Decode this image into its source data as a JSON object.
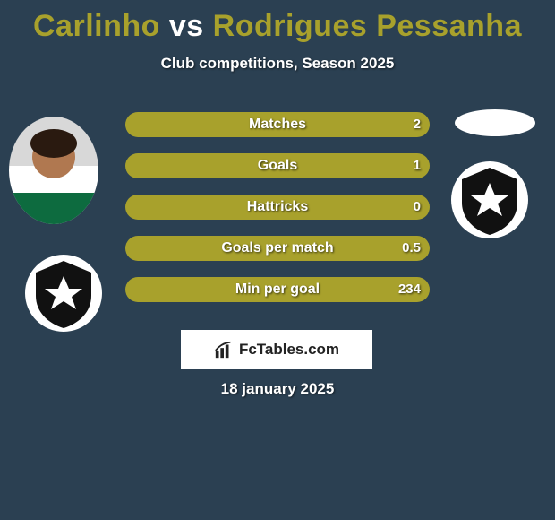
{
  "title": {
    "p1": "Carlinho",
    "vs": "vs",
    "p2": "Rodrigues Pessanha"
  },
  "subtitle": "Club competitions, Season 2025",
  "colors": {
    "p1_bar": "#a8a12c",
    "p2_bar": "#2b4052",
    "p2_bar_alt": "#2b4052"
  },
  "stats": [
    {
      "label": "Matches",
      "v1": "2",
      "v2": "",
      "share1": 1.0
    },
    {
      "label": "Goals",
      "v1": "1",
      "v2": "",
      "share1": 1.0
    },
    {
      "label": "Hattricks",
      "v1": "0",
      "v2": "",
      "share1": 1.0
    },
    {
      "label": "Goals per match",
      "v1": "0.5",
      "v2": "",
      "share1": 1.0
    },
    {
      "label": "Min per goal",
      "v1": "234",
      "v2": "",
      "share1": 1.0
    }
  ],
  "brand": "FcTables.com",
  "date": "18 january 2025"
}
